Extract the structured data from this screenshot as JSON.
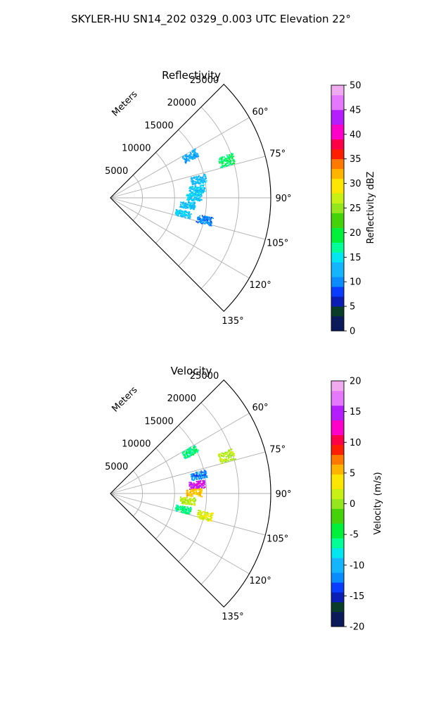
{
  "figure_title": "SKYLER-HU  SN14_202  0329_0.003 UTC Elevation 22°",
  "chart_data": [
    {
      "type": "polar-sector-scatter",
      "title": "Reflectivity",
      "range_label": "Meters",
      "range_ticks": [
        5000,
        10000,
        15000,
        20000,
        25000
      ],
      "range_max": 25000,
      "azimuth_range_deg": [
        45,
        135
      ],
      "azimuth_ticks_deg": [
        60,
        75,
        90,
        105,
        120,
        135
      ],
      "colorbar": {
        "label": "Reflectivity dBZ",
        "min": 0,
        "max": 50,
        "ticks": [
          0,
          5,
          10,
          15,
          20,
          25,
          30,
          35,
          40,
          45,
          50
        ]
      },
      "echoes": [
        {
          "az_deg": 72,
          "range_m": 19000,
          "value": 18
        },
        {
          "az_deg": 62,
          "range_m": 14000,
          "value": 12
        },
        {
          "az_deg": 78,
          "range_m": 14000,
          "value": 13
        },
        {
          "az_deg": 84,
          "range_m": 13500,
          "value": 14
        },
        {
          "az_deg": 89,
          "range_m": 13000,
          "value": 14
        },
        {
          "az_deg": 95,
          "range_m": 12000,
          "value": 13
        },
        {
          "az_deg": 102,
          "range_m": 11500,
          "value": 14
        },
        {
          "az_deg": 103,
          "range_m": 15000,
          "value": 10
        }
      ]
    },
    {
      "type": "polar-sector-scatter",
      "title": "Velocity",
      "range_label": "Meters",
      "range_ticks": [
        5000,
        10000,
        15000,
        20000,
        25000
      ],
      "range_max": 25000,
      "azimuth_range_deg": [
        45,
        135
      ],
      "azimuth_ticks_deg": [
        60,
        75,
        90,
        105,
        120,
        135
      ],
      "colorbar": {
        "label": "Velocity (m/s)",
        "min": -20,
        "max": 20,
        "ticks": [
          -20,
          -15,
          -10,
          -5,
          0,
          5,
          10,
          15,
          20
        ]
      },
      "echoes": [
        {
          "az_deg": 72,
          "range_m": 19000,
          "value": 1
        },
        {
          "az_deg": 62,
          "range_m": 14000,
          "value": -6
        },
        {
          "az_deg": 78,
          "range_m": 14000,
          "value": -12
        },
        {
          "az_deg": 84,
          "range_m": 13500,
          "value": 14
        },
        {
          "az_deg": 89,
          "range_m": 13000,
          "value": 5
        },
        {
          "az_deg": 95,
          "range_m": 12000,
          "value": 1
        },
        {
          "az_deg": 102,
          "range_m": 11500,
          "value": -6
        },
        {
          "az_deg": 103,
          "range_m": 15000,
          "value": 2
        }
      ]
    }
  ]
}
